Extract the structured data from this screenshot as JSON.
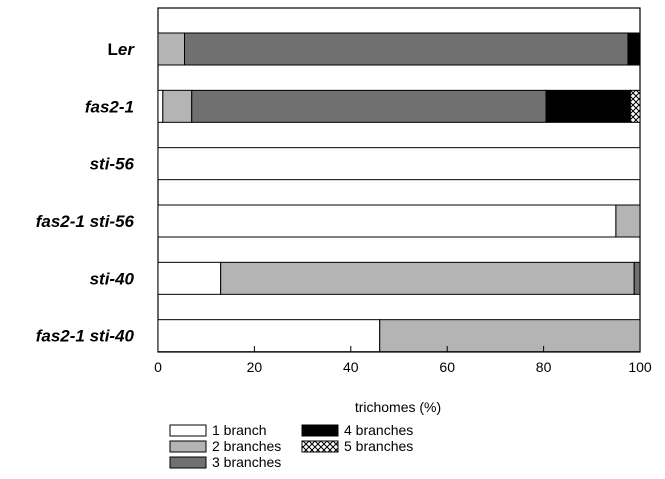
{
  "chart_data": {
    "type": "bar",
    "orientation": "horizontal",
    "stacked": true,
    "categories": [
      {
        "name": "Ler",
        "parts": [
          {
            "t": "L",
            "i": false
          },
          {
            "t": "er",
            "i": true
          }
        ]
      },
      {
        "name": "fas2-1",
        "parts": [
          {
            "t": "fas2-1",
            "i": true
          }
        ]
      },
      {
        "name": "sti-56",
        "parts": [
          {
            "t": "sti-56",
            "i": true
          }
        ]
      },
      {
        "name": "fas2-1 sti-56",
        "parts": [
          {
            "t": "fas2-1 sti-56",
            "i": true
          }
        ]
      },
      {
        "name": "sti-40",
        "parts": [
          {
            "t": "sti-40",
            "i": true
          }
        ]
      },
      {
        "name": "fas2-1 sti-40",
        "parts": [
          {
            "t": "fas2-1 sti-40",
            "i": true
          }
        ]
      }
    ],
    "series": [
      {
        "name": "1 branch",
        "fill": "#ffffff",
        "values": [
          0,
          1,
          100,
          95,
          13,
          46
        ]
      },
      {
        "name": "2 branches",
        "fill": "#b4b4b4",
        "values": [
          5.5,
          6,
          0,
          5,
          85.8,
          54
        ]
      },
      {
        "name": "3 branches",
        "fill": "#707070",
        "values": [
          92,
          73.5,
          0,
          0,
          1.2,
          0
        ]
      },
      {
        "name": "4 branches",
        "fill": "#000000",
        "values": [
          2.5,
          17.5,
          0,
          0,
          0,
          0
        ]
      },
      {
        "name": "5 branches",
        "fill": "crosshatch",
        "values": [
          0,
          2,
          0,
          0,
          0,
          0
        ]
      }
    ],
    "xlabel": "trichomes (%)",
    "xlim": [
      0,
      100
    ],
    "xticks": [
      "0",
      "20",
      "40",
      "60",
      "80",
      "100"
    ],
    "legend_position": "bottom",
    "grid": false
  }
}
